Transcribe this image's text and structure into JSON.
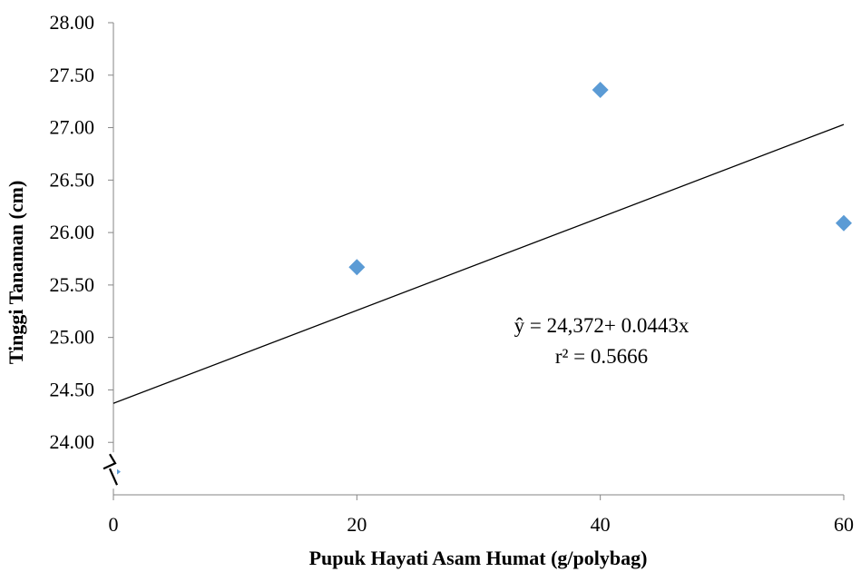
{
  "chart_data": {
    "type": "scatter",
    "title": "",
    "xlabel": "Pupuk Hayati Asam Humat (g/polybag)",
    "ylabel": "Tinggi Tanaman (cm)",
    "xlim": [
      0,
      60
    ],
    "ylim": [
      23.5,
      28.0
    ],
    "x_ticks": [
      0,
      20,
      40,
      60
    ],
    "x_tick_labels": [
      "0",
      "20",
      "40",
      "60"
    ],
    "y_ticks": [
      24.0,
      24.5,
      25.0,
      25.5,
      26.0,
      26.5,
      27.0,
      27.5,
      28.0
    ],
    "y_tick_labels": [
      "24.00",
      "24.50",
      "25.00",
      "25.50",
      "26.00",
      "26.50",
      "27.00",
      "27.50",
      "28.00"
    ],
    "grid": false,
    "axis_break": "y",
    "series": [
      {
        "marker": "diamond",
        "color": "#5b9bd5",
        "points": [
          {
            "x": 0,
            "y": 23.72
          },
          {
            "x": 20,
            "y": 25.67
          },
          {
            "x": 40,
            "y": 27.36
          },
          {
            "x": 60,
            "y": 26.09
          }
        ]
      }
    ],
    "trendline": {
      "type": "linear",
      "intercept": 24.372,
      "slope": 0.0443,
      "color": "#000000"
    },
    "annotations": {
      "equation": "ŷ = 24,372+ 0.0443x",
      "r_squared": "r² = 0.5666"
    }
  }
}
